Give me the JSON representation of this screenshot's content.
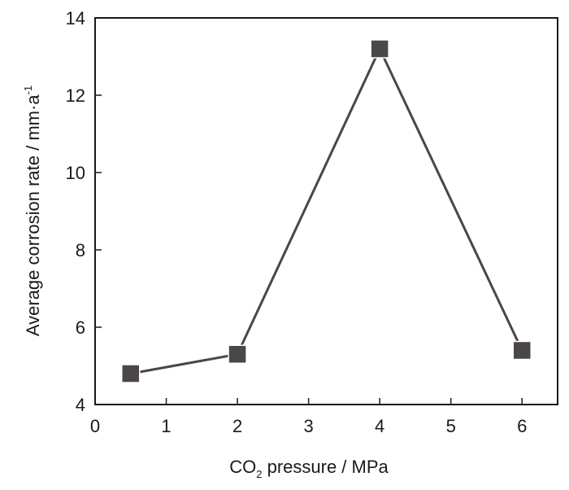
{
  "chart_data": {
    "type": "line",
    "xlabel": {
      "main": "CO",
      "sub": "2",
      "rest": " pressure / MPa"
    },
    "ylabel": {
      "main": "Average corrosion rate / mm·a",
      "sup": "-1"
    },
    "xlim": [
      0,
      6.5
    ],
    "ylim": [
      4,
      14
    ],
    "xticks": [
      0,
      1,
      2,
      3,
      4,
      5,
      6
    ],
    "yticks": [
      4,
      6,
      8,
      10,
      12,
      14
    ],
    "grid": false,
    "marker": "square",
    "series": [
      {
        "x": [
          0.5,
          2,
          4,
          6
        ],
        "y": [
          4.8,
          5.3,
          13.2,
          5.4
        ],
        "color": "#4a4746"
      }
    ]
  }
}
